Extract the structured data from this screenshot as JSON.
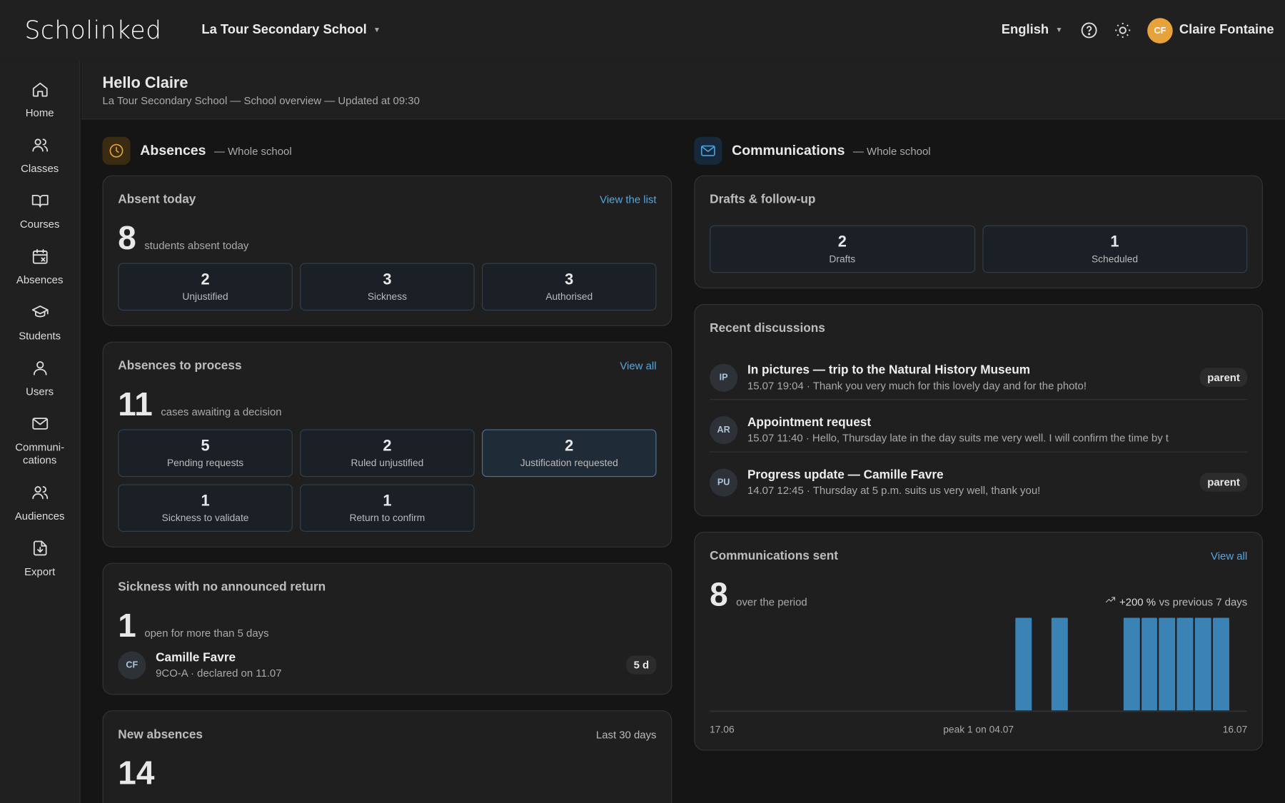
{
  "header": {
    "brand": "Scholinked",
    "school": "La Tour Secondary School",
    "language": "English",
    "user_initials": "CF",
    "user_name": "Claire Fontaine"
  },
  "nav": [
    "Home",
    "Classes",
    "Courses",
    "Absences",
    "Students",
    "Users",
    "Communi-cations",
    "Audiences",
    "Export"
  ],
  "greeting": {
    "title": "Hello Claire",
    "subtitle": "La Tour Secondary School — School overview — Updated at 09:30"
  },
  "absences": {
    "title": "Absences",
    "scope": "— Whole school",
    "absent_today": {
      "title": "Absent today",
      "link": "View the list",
      "count": 8,
      "caption": "students absent today",
      "stats": [
        {
          "value": 2,
          "label": "Unjustified"
        },
        {
          "value": 3,
          "label": "Sickness"
        },
        {
          "value": 3,
          "label": "Authorised"
        }
      ]
    },
    "to_process": {
      "title": "Absences to process",
      "link": "View all",
      "count": 11,
      "caption": "cases awaiting a decision",
      "stats": [
        {
          "value": 5,
          "label": "Pending requests"
        },
        {
          "value": 2,
          "label": "Ruled unjustified"
        },
        {
          "value": 2,
          "label": "Justification requested"
        },
        {
          "value": 1,
          "label": "Sickness to validate"
        },
        {
          "value": 1,
          "label": "Return to confirm"
        }
      ]
    },
    "sickness": {
      "title": "Sickness with no announced return",
      "count": 1,
      "caption": "open for more than 5 days",
      "items": [
        {
          "initials": "CF",
          "name": "Camille Favre",
          "detail": "9CO-A · declared on 11.07",
          "badge": "5 d"
        }
      ]
    },
    "new_absences": {
      "title": "New absences",
      "period": "Last 30 days",
      "count": 14
    }
  },
  "communications": {
    "title": "Communications",
    "scope": "— Whole school",
    "drafts": {
      "title": "Drafts & follow-up",
      "stats": [
        {
          "value": 2,
          "label": "Drafts"
        },
        {
          "value": 1,
          "label": "Scheduled"
        }
      ]
    },
    "discussions": {
      "title": "Recent discussions",
      "items": [
        {
          "initials": "IP",
          "title": "In pictures — trip to the Natural History Museum",
          "meta": "15.07 19:04 · Thank you very much for this lovely day and for the photo!",
          "tag": "parent"
        },
        {
          "initials": "AR",
          "title": "Appointment request",
          "meta": "15.07 11:40 · Hello, Thursday late in the day suits me very well. I will confirm the time by t"
        },
        {
          "initials": "PU",
          "title": "Progress update — Camille Favre",
          "meta": "14.07 12:45 · Thursday at 5 p.m. suits us very well, thank you!",
          "tag": "parent"
        }
      ]
    },
    "sent": {
      "title": "Communications sent",
      "link": "View all",
      "count": 8,
      "caption": "over the period",
      "trend": "+200 %",
      "trend_caption": "vs previous 7 days",
      "values": [
        0,
        0,
        0,
        0,
        0,
        0,
        0,
        0,
        0,
        0,
        0,
        0,
        0,
        0,
        0,
        0,
        0,
        1,
        0,
        1,
        0,
        0,
        0,
        1,
        1,
        1,
        1,
        1,
        1,
        0
      ],
      "start_label": "17.06",
      "peak_label": "peak 1 on 04.07",
      "end_label": "16.07",
      "color": "#3b82b5"
    }
  }
}
